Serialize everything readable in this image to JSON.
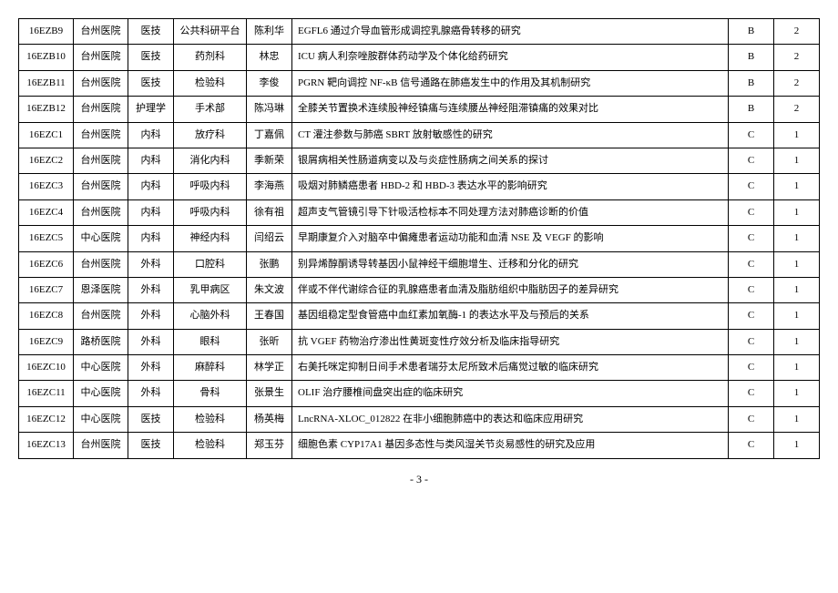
{
  "table": {
    "rows": [
      {
        "id": "16EZB9",
        "hospital": "台州医院",
        "dept1": "医技",
        "dept2": "公共科研平台",
        "person": "陈利华",
        "desc": "EGFL6 通过介导血管形成调控乳腺癌骨转移的研究",
        "grade": "B",
        "num": "2"
      },
      {
        "id": "16EZB10",
        "hospital": "台州医院",
        "dept1": "医技",
        "dept2": "药剂科",
        "person": "林忠",
        "desc": "ICU 病人利奈唑胺群体药动学及个体化给药研究",
        "grade": "B",
        "num": "2"
      },
      {
        "id": "16EZB11",
        "hospital": "台州医院",
        "dept1": "医技",
        "dept2": "检验科",
        "person": "李俊",
        "desc": "PGRN 靶向调控 NF-κB 信号通路在肺癌发生中的作用及其机制研究",
        "grade": "B",
        "num": "2"
      },
      {
        "id": "16EZB12",
        "hospital": "台州医院",
        "dept1": "护理学",
        "dept2": "手术部",
        "person": "陈冯琳",
        "desc": "全膝关节置换术连续股神经镇痛与连续腰丛神经阻滞镇痛的效果对比",
        "grade": "B",
        "num": "2"
      },
      {
        "id": "16EZC1",
        "hospital": "台州医院",
        "dept1": "内科",
        "dept2": "放疗科",
        "person": "丁嘉佩",
        "desc": "CT 灌注参数与肺癌 SBRT 放射敏感性的研究",
        "grade": "C",
        "num": "1"
      },
      {
        "id": "16EZC2",
        "hospital": "台州医院",
        "dept1": "内科",
        "dept2": "消化内科",
        "person": "季新荣",
        "desc": "银屑病相关性肠道病变以及与炎症性肠病之间关系的探讨",
        "grade": "C",
        "num": "1"
      },
      {
        "id": "16EZC3",
        "hospital": "台州医院",
        "dept1": "内科",
        "dept2": "呼吸内科",
        "person": "李海燕",
        "desc": "吸烟对肺鳞癌患者 HBD-2 和 HBD-3 表达水平的影响研究",
        "grade": "C",
        "num": "1"
      },
      {
        "id": "16EZC4",
        "hospital": "台州医院",
        "dept1": "内科",
        "dept2": "呼吸内科",
        "person": "徐有祖",
        "desc": "超声支气管镜引导下针吸活检标本不同处理方法对肺癌诊断的价值",
        "grade": "C",
        "num": "1"
      },
      {
        "id": "16EZC5",
        "hospital": "中心医院",
        "dept1": "内科",
        "dept2": "神经内科",
        "person": "闫绍云",
        "desc": "早期康复介入对脑卒中偏瘫患者运动功能和血清 NSE 及 VEGF 的影响",
        "grade": "C",
        "num": "1"
      },
      {
        "id": "16EZC6",
        "hospital": "台州医院",
        "dept1": "外科",
        "dept2": "口腔科",
        "person": "张鹏",
        "desc": "别异烯醇酮诱导转基因小鼠神经干细胞增生、迁移和分化的研究",
        "grade": "C",
        "num": "1"
      },
      {
        "id": "16EZC7",
        "hospital": "恩泽医院",
        "dept1": "外科",
        "dept2": "乳甲病区",
        "person": "朱文波",
        "desc": "伴或不伴代谢综合征的乳腺癌患者血清及脂肪组织中脂肪因子的差异研究",
        "grade": "C",
        "num": "1"
      },
      {
        "id": "16EZC8",
        "hospital": "台州医院",
        "dept1": "外科",
        "dept2": "心脑外科",
        "person": "王春国",
        "desc": "基因组稳定型食管癌中血红素加氧酶-1 的表达水平及与预后的关系",
        "grade": "C",
        "num": "1"
      },
      {
        "id": "16EZC9",
        "hospital": "路桥医院",
        "dept1": "外科",
        "dept2": "眼科",
        "person": "张昕",
        "desc": "抗 VGEF 药物治疗渗出性黄斑变性疗效分析及临床指导研究",
        "grade": "C",
        "num": "1"
      },
      {
        "id": "16EZC10",
        "hospital": "中心医院",
        "dept1": "外科",
        "dept2": "麻醉科",
        "person": "林学正",
        "desc": "右美托咪定抑制日间手术患者瑞芬太尼所致术后痛觉过敏的临床研究",
        "grade": "C",
        "num": "1"
      },
      {
        "id": "16EZC11",
        "hospital": "中心医院",
        "dept1": "外科",
        "dept2": "骨科",
        "person": "张景生",
        "desc": "OLIF 治疗腰椎间盘突出症的临床研究",
        "grade": "C",
        "num": "1"
      },
      {
        "id": "16EZC12",
        "hospital": "中心医院",
        "dept1": "医技",
        "dept2": "检验科",
        "person": "杨英梅",
        "desc": "LncRNA-XLOC_012822 在非小细胞肺癌中的表达和临床应用研究",
        "grade": "C",
        "num": "1"
      },
      {
        "id": "16EZC13",
        "hospital": "台州医院",
        "dept1": "医技",
        "dept2": "检验科",
        "person": "郑玉芬",
        "desc": "细胞色素 CYP17A1 基因多态性与类风湿关节炎易感性的研究及应用",
        "grade": "C",
        "num": "1"
      }
    ]
  },
  "pageNumber": "- 3 -"
}
